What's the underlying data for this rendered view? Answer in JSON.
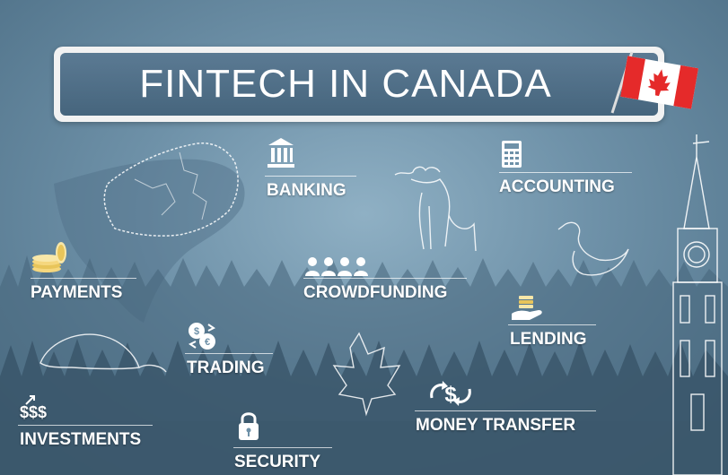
{
  "title": "FINTECH IN CANADA",
  "flag": {
    "name": "canada-flag",
    "colors": {
      "red": "#e52a2a",
      "white": "#ffffff"
    }
  },
  "categories": {
    "banking": "BANKING",
    "accounting": "ACCOUNTING",
    "payments": "PAYMENTS",
    "crowdfunding": "CROWDFUNDING",
    "lending": "LENDING",
    "trading": "TRADING",
    "investments": "INVESTMENTS",
    "money_transfer": "MONEY TRANSFER",
    "security": "SECURITY"
  },
  "icon_text": {
    "investments": "$$$"
  },
  "palette": {
    "background": "#6e91a8",
    "banner": "#4f6f88",
    "text": "#ffffff"
  }
}
